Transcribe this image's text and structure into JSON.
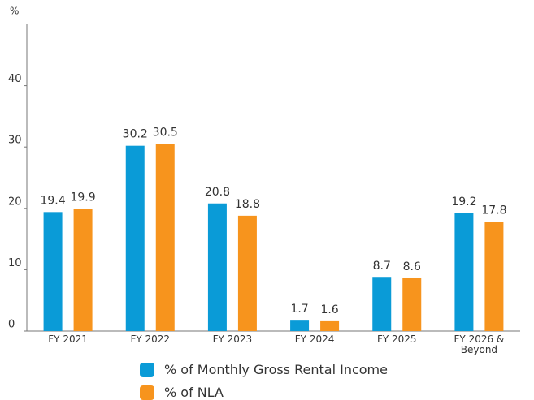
{
  "chart_data": {
    "type": "bar",
    "y_label": "%",
    "categories": [
      "FY 2021",
      "FY 2022",
      "FY 2023",
      "FY 2024",
      "FY 2025",
      "FY 2026 & Beyond"
    ],
    "series": [
      {
        "name": "% of Monthly Gross Rental Income",
        "color": "#0a9bd7",
        "values": [
          19.4,
          30.2,
          20.8,
          1.7,
          8.7,
          19.2
        ]
      },
      {
        "name": "% of NLA",
        "color": "#f7941d",
        "values": [
          19.9,
          30.5,
          18.8,
          1.6,
          8.6,
          17.8
        ]
      }
    ],
    "ylim": [
      0,
      50
    ],
    "yticks": [
      0,
      10,
      20,
      30,
      40
    ],
    "grid": false
  }
}
